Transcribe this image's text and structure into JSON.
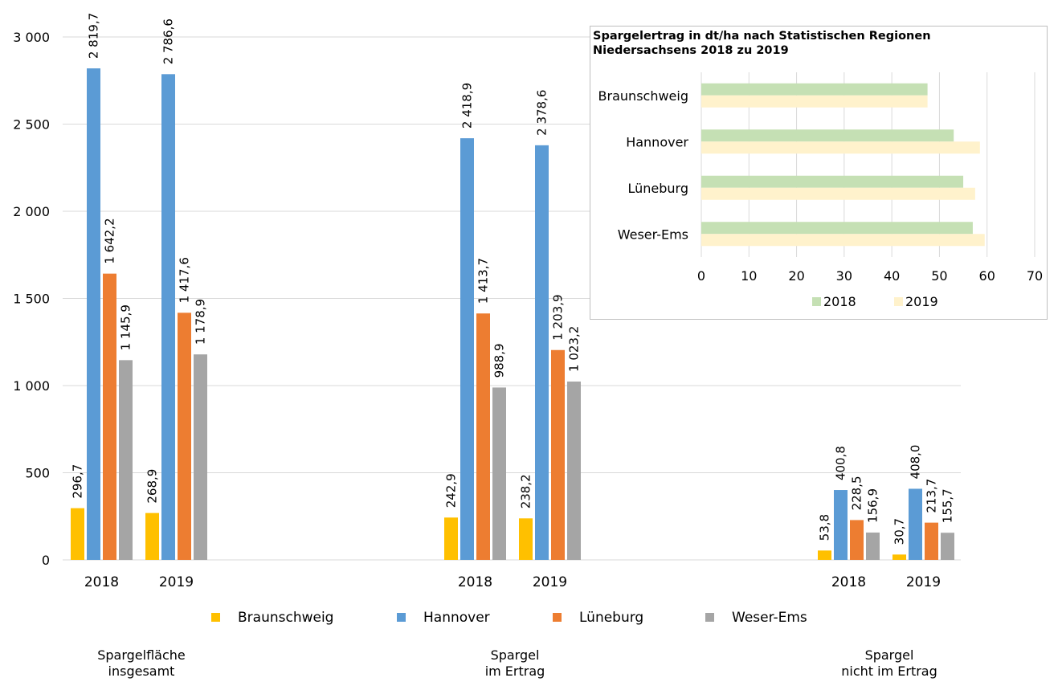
{
  "chart_data": [
    {
      "type": "bar",
      "groups": [
        {
          "label": "Spargelfläche\ninsgesamt",
          "years": [
            "2018",
            "2019"
          ]
        },
        {
          "label": "Spargel\nim Ertrag",
          "years": [
            "2018",
            "2019"
          ]
        },
        {
          "label": "Spargel\nnicht im Ertrag",
          "years": [
            "2018",
            "2019"
          ]
        }
      ],
      "series": [
        {
          "name": "Braunschweig",
          "color": "#FFC000",
          "values": [
            296.7,
            268.9,
            242.9,
            238.2,
            53.8,
            30.7
          ],
          "labels": [
            "296,7",
            "268,9",
            "242,9",
            "238,2",
            "53,8",
            "30,7"
          ]
        },
        {
          "name": "Hannover",
          "color": "#5B9BD5",
          "values": [
            2819.7,
            2786.6,
            2418.9,
            2378.6,
            400.8,
            408.0
          ],
          "labels": [
            "2 819,7",
            "2 786,6",
            "2 418,9",
            "2 378,6",
            "400,8",
            "408,0"
          ]
        },
        {
          "name": "Lüneburg",
          "color": "#ED7D31",
          "values": [
            1642.2,
            1417.6,
            1413.7,
            1203.9,
            228.5,
            213.7
          ],
          "labels": [
            "1 642,2",
            "1 417,6",
            "1 413,7",
            "1 203,9",
            "228,5",
            "213,7"
          ]
        },
        {
          "name": "Weser-Ems",
          "color": "#A5A5A5",
          "values": [
            1145.9,
            1178.9,
            988.9,
            1023.2,
            156.9,
            155.7
          ],
          "labels": [
            "1 145,9",
            "1 178,9",
            "988,9",
            "1 023,2",
            "156,9",
            "155,7"
          ]
        }
      ],
      "yticks": [
        "0",
        "500",
        "1 000",
        "1 500",
        "2 000",
        "2 500",
        "3 000"
      ],
      "ylim": [
        0,
        3000
      ],
      "grid": true,
      "legend": "bottom"
    },
    {
      "type": "bar",
      "orientation": "horizontal",
      "title": "Spargelertrag in dt/ha nach Statistischen Regionen\nNiedersachsens 2018 zu 2019",
      "categories": [
        "Braunschweig",
        "Hannover",
        "Lüneburg",
        "Weser-Ems"
      ],
      "series": [
        {
          "name": "2018",
          "color": "#C5E0B4",
          "values": [
            47.5,
            53,
            55,
            57
          ]
        },
        {
          "name": "2019",
          "color": "#FFF2CC",
          "values": [
            47.5,
            58.5,
            57.5,
            59.5
          ]
        }
      ],
      "xticks": [
        "0",
        "10",
        "20",
        "30",
        "40",
        "50",
        "60",
        "70"
      ],
      "xlim": [
        0,
        70
      ],
      "grid": true,
      "legend": "bottom"
    }
  ]
}
